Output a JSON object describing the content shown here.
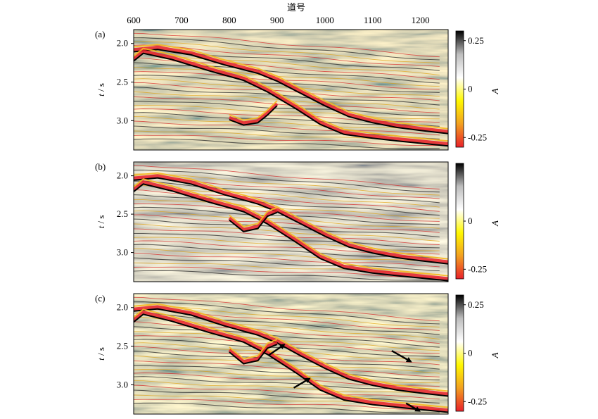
{
  "figure": {
    "xaxis_title": "道号",
    "y_unit_symbol": "t",
    "y_unit_sep": " / ",
    "y_unit": "s",
    "colorbar_symbol": "A"
  },
  "chart_data": [
    {
      "type": "heatmap",
      "panel_label": "(a)",
      "x_ticks": [
        "600",
        "700",
        "800",
        "900",
        "1000",
        "1100",
        "1200"
      ],
      "y_ticks": [
        "2.0",
        "2.5",
        "3.0"
      ],
      "xlim": [
        600,
        1258
      ],
      "ylim": [
        1.82,
        3.38
      ],
      "colorbar_ticks": [
        "0.25",
        "0",
        "-0.25"
      ],
      "colorbar_range": [
        -0.3,
        0.3
      ],
      "colormap": [
        "#e8202a",
        "#f2a020",
        "#fff800",
        "#ffffff",
        "#bdbdbd",
        "#000000"
      ],
      "reflector_horizons": [
        {
          "x": [
            600,
            650,
            720,
            790,
            860,
            900,
            950,
            1000,
            1050,
            1100,
            1150,
            1200,
            1258
          ],
          "t": [
            2.08,
            2.05,
            2.12,
            2.25,
            2.36,
            2.46,
            2.62,
            2.78,
            2.92,
            3.0,
            3.06,
            3.1,
            3.14
          ]
        },
        {
          "x": [
            600,
            620,
            680,
            760,
            830,
            880,
            940,
            990,
            1040,
            1100,
            1160,
            1258
          ],
          "t": [
            2.2,
            2.1,
            2.18,
            2.33,
            2.45,
            2.6,
            2.82,
            3.02,
            3.15,
            3.2,
            3.24,
            3.3
          ]
        },
        {
          "x": [
            800,
            830,
            860,
            880,
            900
          ],
          "t": [
            2.96,
            3.03,
            3.0,
            2.9,
            2.78
          ]
        }
      ]
    },
    {
      "type": "heatmap",
      "panel_label": "(b)",
      "x_ticks": [
        "600",
        "700",
        "800",
        "900",
        "1000",
        "1100",
        "1200"
      ],
      "y_ticks": [
        "2.0",
        "2.5",
        "3.0"
      ],
      "xlim": [
        600,
        1258
      ],
      "ylim": [
        1.82,
        3.38
      ],
      "colorbar_ticks": [
        "0",
        "-0.25"
      ],
      "colorbar_range": [
        -0.3,
        0.3
      ],
      "colormap": [
        "#e8202a",
        "#f2a020",
        "#fff800",
        "#ffffff",
        "#bdbdbd",
        "#000000"
      ],
      "reflector_horizons": [
        {
          "x": [
            600,
            650,
            720,
            790,
            860,
            900,
            950,
            1000,
            1050,
            1100,
            1150,
            1200,
            1258
          ],
          "t": [
            2.03,
            2.0,
            2.08,
            2.22,
            2.34,
            2.44,
            2.6,
            2.76,
            2.9,
            2.98,
            3.04,
            3.08,
            3.12
          ]
        },
        {
          "x": [
            600,
            620,
            680,
            760,
            830,
            880,
            940,
            990,
            1040,
            1100,
            1160,
            1258
          ],
          "t": [
            2.18,
            2.08,
            2.17,
            2.32,
            2.44,
            2.6,
            2.84,
            3.05,
            3.18,
            3.24,
            3.28,
            3.34
          ]
        },
        {
          "x": [
            800,
            830,
            860,
            880,
            900
          ],
          "t": [
            2.55,
            2.7,
            2.66,
            2.5,
            2.45
          ]
        }
      ]
    },
    {
      "type": "heatmap",
      "panel_label": "(c)",
      "x_ticks": [
        "600",
        "700",
        "800",
        "900",
        "1000",
        "1100",
        "1200"
      ],
      "y_ticks": [
        "2.0",
        "2.5",
        "3.0"
      ],
      "xlim": [
        600,
        1258
      ],
      "ylim": [
        1.82,
        3.38
      ],
      "colorbar_ticks": [
        "0.25",
        "0",
        "-0.25"
      ],
      "colorbar_range": [
        -0.3,
        0.3
      ],
      "colormap": [
        "#e8202a",
        "#f2a020",
        "#fff800",
        "#ffffff",
        "#bdbdbd",
        "#000000"
      ],
      "reflector_horizons": [
        {
          "x": [
            600,
            650,
            720,
            790,
            860,
            900,
            950,
            1000,
            1050,
            1100,
            1150,
            1200,
            1258
          ],
          "t": [
            2.02,
            1.99,
            2.07,
            2.21,
            2.33,
            2.43,
            2.6,
            2.76,
            2.9,
            2.98,
            3.04,
            3.08,
            3.12
          ]
        },
        {
          "x": [
            600,
            620,
            680,
            760,
            830,
            880,
            940,
            990,
            1040,
            1100,
            1160,
            1258
          ],
          "t": [
            2.16,
            2.06,
            2.15,
            2.3,
            2.42,
            2.58,
            2.82,
            3.04,
            3.17,
            3.23,
            3.27,
            3.33
          ]
        },
        {
          "x": [
            800,
            830,
            860,
            880,
            900
          ],
          "t": [
            2.55,
            2.7,
            2.66,
            2.5,
            2.45
          ]
        }
      ],
      "annotations": [
        {
          "type": "arrow",
          "from": [
            882,
            2.62
          ],
          "to": [
            915,
            2.48
          ]
        },
        {
          "type": "arrow",
          "from": [
            935,
            3.04
          ],
          "to": [
            968,
            2.92
          ]
        },
        {
          "type": "arrow",
          "from": [
            1140,
            2.56
          ],
          "to": [
            1180,
            2.7
          ]
        },
        {
          "type": "arrow",
          "from": [
            1170,
            3.24
          ],
          "to": [
            1198,
            3.34
          ]
        }
      ]
    }
  ]
}
